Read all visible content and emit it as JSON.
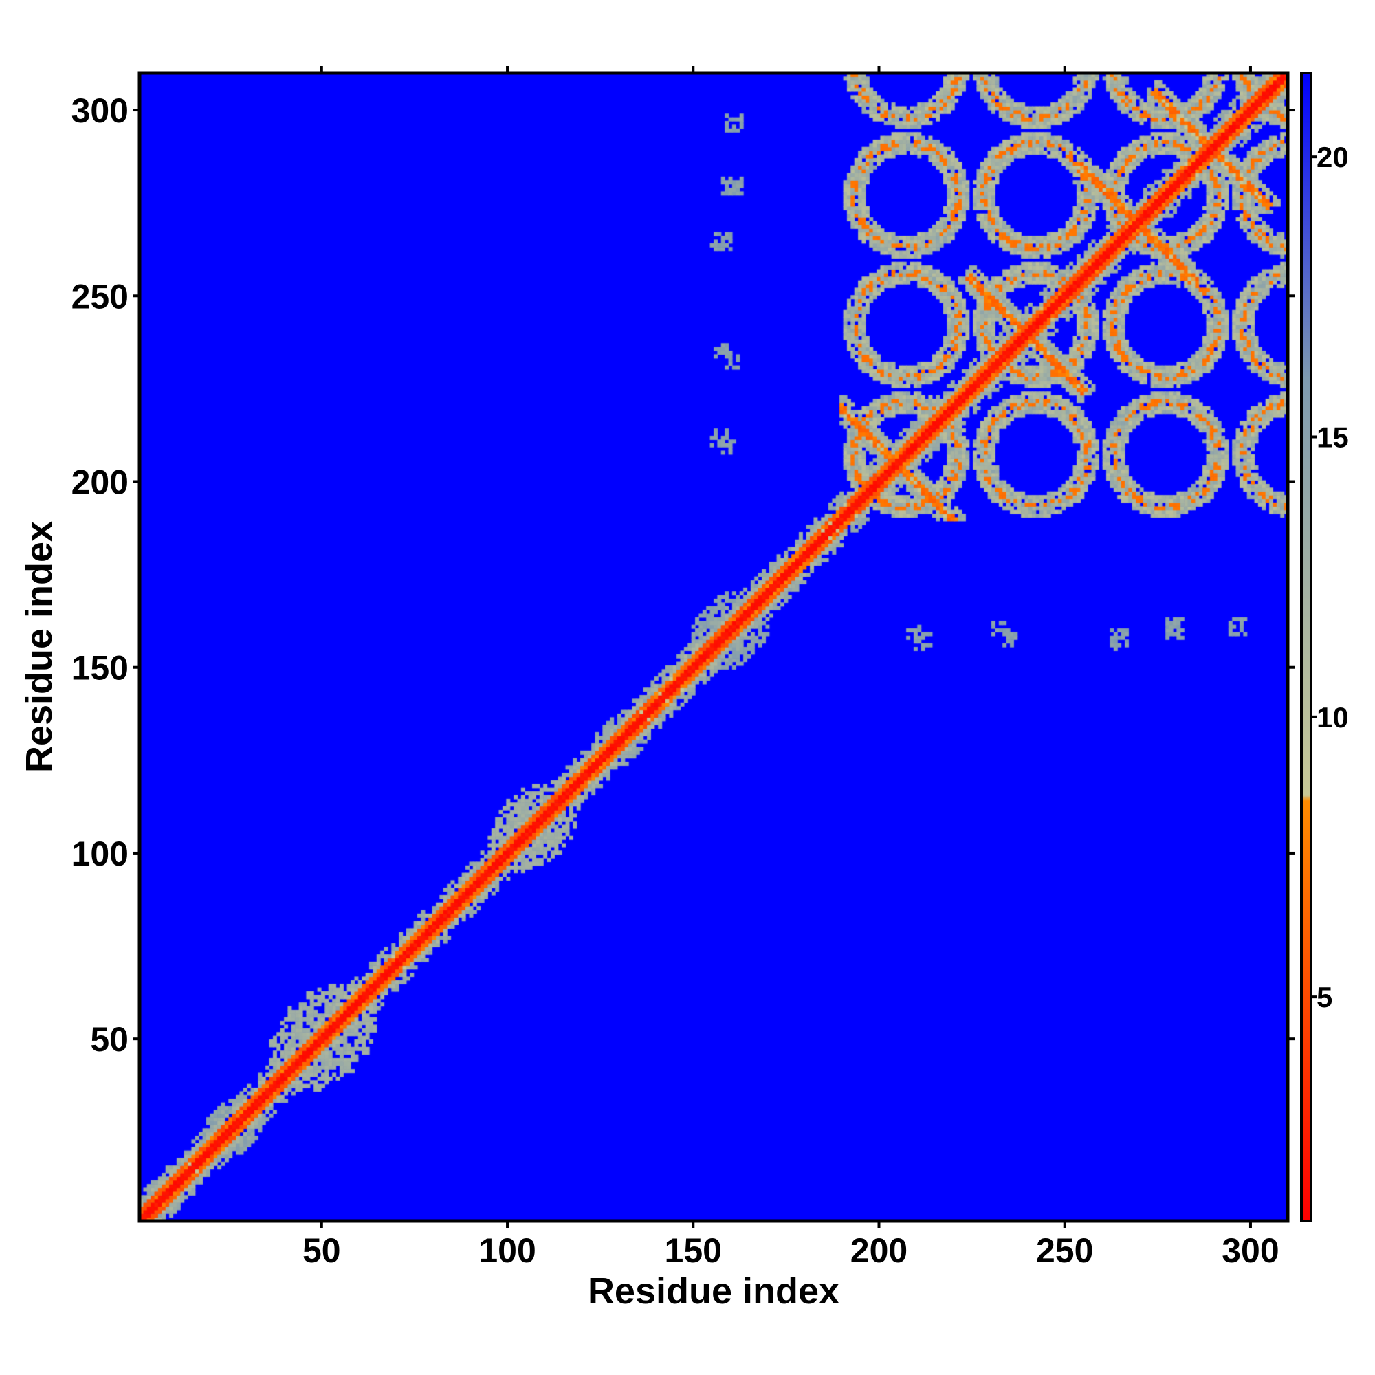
{
  "chart_data": {
    "type": "heatmap",
    "title": "",
    "xlabel": "Residue index",
    "ylabel": "Residue index",
    "xlim": [
      1,
      310
    ],
    "ylim": [
      1,
      310
    ],
    "xticks": [
      50,
      100,
      150,
      200,
      250,
      300
    ],
    "yticks": [
      50,
      100,
      150,
      200,
      250,
      300
    ],
    "tick_labels": [
      "50",
      "100",
      "150",
      "200",
      "250",
      "300"
    ],
    "grid": false,
    "colorbar": {
      "placement": "right",
      "range": [
        1,
        21.5
      ],
      "ticks": [
        5,
        10,
        15,
        20
      ],
      "tick_labels": [
        "5",
        "10",
        "15",
        "20"
      ],
      "stops": [
        {
          "value": 1,
          "color": "#ff0000"
        },
        {
          "value": 8.5,
          "color": "#ff8c00"
        },
        {
          "value": 8.6,
          "color": "#c8c896"
        },
        {
          "value": 16,
          "color": "#7f9bb0"
        },
        {
          "value": 21.5,
          "color": "#0000ff"
        }
      ]
    },
    "background_value": 21.5,
    "background_color": "#0000ff",
    "features": {
      "diagonal": {
        "start": 1,
        "end": 310,
        "core_value": 1.5
      },
      "diagonal_blobs": [
        {
          "center": 50,
          "radius": 12,
          "value": 12
        },
        {
          "center": 107,
          "radius": 10,
          "value": 12
        },
        {
          "center": 160,
          "radius": 9,
          "value": 14
        },
        {
          "center": 25,
          "radius": 7,
          "value": 14
        },
        {
          "center": 130,
          "radius": 6,
          "value": 14
        }
      ],
      "block_region": [
        190,
        310
      ],
      "block_nodes": [
        205,
        240,
        270,
        290
      ],
      "scattered_patches": [
        {
          "x": 161,
          "y": 297
        },
        {
          "x": 160,
          "y": 280
        },
        {
          "x": 158,
          "y": 265
        },
        {
          "x": 160,
          "y": 233
        },
        {
          "x": 159,
          "y": 210
        },
        {
          "x": 212,
          "y": 157
        },
        {
          "x": 236,
          "y": 158
        },
        {
          "x": 265,
          "y": 157
        },
        {
          "x": 280,
          "y": 161
        },
        {
          "x": 297,
          "y": 161
        }
      ]
    }
  }
}
